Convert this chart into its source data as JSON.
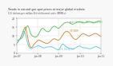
{
  "title": "Trends in natural gas spot prices at major global markets",
  "subtitle": "U.S. dollars per million British thermal units (MMBtu)",
  "background_color": "#f8f8f8",
  "plot_bg": "#ffffff",
  "japan_color": "#5cb85c",
  "uk_color": "#c8822a",
  "us_color": "#5bc0de",
  "japan_label": "Japan (average LNG import price)",
  "uk_label": "UK (NBP)",
  "us_label": "U.S. Henry Hub",
  "ylim": [
    0,
    20
  ],
  "yticks": [
    0,
    5,
    10,
    15,
    20
  ],
  "xtick_labels": [
    "Jan-07",
    "Jan-08",
    "Jan-09",
    "Jan-10",
    "Jan-11"
  ],
  "japan_data": [
    7.2,
    7.3,
    7.3,
    7.4,
    7.5,
    7.5,
    7.6,
    7.7,
    7.8,
    7.9,
    8.0,
    8.1,
    8.2,
    8.3,
    8.5,
    8.7,
    9.0,
    9.3,
    9.7,
    10.2,
    10.8,
    11.4,
    12.0,
    12.6,
    13.2,
    13.8,
    14.4,
    14.8,
    15.2,
    15.5,
    15.7,
    15.8,
    15.6,
    15.3,
    14.8,
    14.2,
    13.5,
    12.8,
    12.1,
    11.5,
    11.0,
    10.6,
    10.3,
    10.1,
    9.9,
    9.8,
    9.7,
    9.6,
    9.5,
    9.4,
    9.3,
    9.3,
    9.2,
    9.2,
    9.2,
    9.3,
    9.4,
    9.6,
    9.8,
    10.0,
    10.3,
    10.6,
    11.0,
    11.4,
    11.8,
    12.2,
    12.6,
    13.0,
    13.4,
    13.7,
    13.9,
    14.1,
    14.2,
    14.3,
    14.3,
    14.2,
    14.1,
    13.9,
    13.7,
    13.5,
    13.3,
    13.1,
    12.9,
    12.7,
    12.6,
    12.5,
    12.4,
    12.3,
    12.3,
    12.3,
    12.4,
    12.5,
    12.6,
    12.8,
    13.0,
    13.2,
    13.5,
    13.8,
    14.1,
    14.4,
    14.7,
    14.9,
    15.1,
    15.3,
    15.4,
    15.5,
    15.5,
    15.5,
    15.4,
    15.3,
    15.2,
    15.1,
    14.9,
    14.8,
    14.6,
    14.5,
    14.4,
    14.3,
    14.3,
    14.4,
    14.5,
    14.7,
    14.9,
    15.1,
    15.3,
    15.5,
    15.7,
    15.9,
    16.1,
    16.3,
    16.5,
    16.7,
    16.9,
    17.1,
    17.3,
    17.4,
    17.5,
    17.6,
    17.6,
    17.7,
    17.7,
    17.7,
    17.8,
    17.8,
    17.8,
    17.8,
    17.8,
    17.7,
    17.6,
    17.5,
    17.4,
    17.3,
    17.2,
    17.1,
    17.0,
    16.9,
    16.8,
    16.7,
    16.7,
    16.7,
    16.8,
    16.9,
    17.0,
    17.1,
    17.2,
    17.3,
    17.4,
    17.5,
    17.6,
    17.7,
    17.8,
    17.9,
    18.0,
    18.1,
    18.1,
    18.2,
    18.2,
    18.2,
    18.2,
    18.1,
    18.1,
    18.0,
    17.9,
    17.9,
    17.8,
    17.7,
    17.7,
    17.6,
    17.5,
    17.5,
    17.4,
    17.4,
    17.4,
    17.5,
    17.6,
    17.7,
    17.8,
    17.9,
    18.0,
    18.1,
    18.1,
    18.2,
    18.2,
    18.2,
    18.2,
    18.2,
    18.2,
    18.1,
    18.1,
    18.0,
    17.9,
    17.9,
    17.8,
    17.7,
    17.7,
    17.6,
    17.5,
    17.5,
    17.4,
    17.4,
    17.5,
    17.6,
    17.7,
    17.8,
    17.9,
    18.0,
    18.1,
    18.2,
    18.3,
    18.4,
    18.5,
    18.5,
    18.5,
    18.5,
    18.4,
    18.4,
    18.3,
    18.3,
    18.2,
    18.2
  ],
  "uk_data": [
    5.5,
    5.7,
    5.9,
    6.2,
    6.5,
    6.8,
    7.1,
    7.4,
    7.7,
    8.1,
    8.5,
    8.9,
    9.3,
    9.7,
    10.2,
    10.7,
    11.3,
    11.9,
    12.5,
    13.1,
    13.6,
    14.0,
    14.4,
    14.7,
    15.0,
    14.8,
    14.2,
    13.4,
    12.5,
    11.5,
    10.4,
    9.3,
    8.2,
    7.2,
    6.3,
    5.5,
    4.8,
    4.2,
    3.8,
    3.5,
    3.3,
    3.2,
    3.2,
    3.3,
    3.5,
    3.7,
    4.0,
    4.3,
    4.6,
    4.9,
    5.2,
    5.5,
    5.7,
    5.9,
    6.1,
    6.3,
    6.5,
    6.7,
    6.9,
    7.1,
    7.2,
    7.3,
    7.4,
    7.4,
    7.4,
    7.3,
    7.2,
    7.1,
    7.0,
    6.9,
    6.8,
    6.7,
    6.6,
    6.5,
    6.4,
    6.3,
    6.2,
    6.1,
    6.0,
    5.9,
    5.8,
    5.7,
    5.6,
    5.6,
    5.5,
    5.5,
    5.5,
    5.5,
    5.6,
    5.7,
    5.8,
    5.9,
    6.0,
    6.2,
    6.4,
    6.6,
    6.8,
    7.0,
    7.2,
    7.4,
    7.6,
    7.8,
    7.9,
    8.0,
    8.1,
    8.2,
    8.2,
    8.2,
    8.2,
    8.1,
    8.0,
    7.9,
    7.8,
    7.7,
    7.6,
    7.5,
    7.4,
    7.4,
    7.4,
    7.5,
    7.6,
    7.8,
    8.0,
    8.3,
    8.6,
    8.9,
    9.2,
    9.5,
    9.8,
    10.1,
    10.4,
    10.7,
    11.0,
    11.3,
    11.6,
    11.8,
    12.0,
    12.2,
    12.3,
    12.4,
    12.5,
    12.5,
    12.5,
    12.5,
    12.4,
    12.3,
    12.2,
    12.0,
    11.8,
    11.6,
    11.4,
    11.1,
    10.8,
    10.5,
    10.2,
    9.9,
    9.6,
    9.3,
    9.0,
    8.8,
    8.6,
    8.4,
    8.2,
    8.1,
    8.0,
    7.9,
    7.8,
    7.8,
    7.9,
    8.0,
    8.1,
    8.3,
    8.5,
    8.7,
    8.9,
    9.1,
    9.3,
    9.5,
    9.7,
    9.9,
    10.1,
    10.3,
    10.5,
    10.7,
    10.8,
    10.9,
    11.0,
    11.1,
    11.1,
    11.1,
    11.1,
    11.0,
    10.9,
    10.8,
    10.7,
    10.6,
    10.5,
    10.4,
    10.3,
    10.2,
    10.1,
    10.0,
    9.9,
    9.8,
    9.8,
    9.8,
    9.9,
    10.0,
    10.1,
    10.2,
    10.3,
    10.4,
    10.5,
    10.6,
    10.7,
    10.8,
    10.9,
    11.0,
    11.1,
    11.2,
    11.2,
    11.3,
    11.3,
    11.3,
    11.3,
    11.2,
    11.1,
    11.0,
    10.9,
    10.8,
    10.6,
    10.5,
    10.3,
    10.2,
    10.0,
    9.9,
    9.7,
    9.6,
    9.5,
    9.4
  ],
  "us_data": [
    5.5,
    5.7,
    6.0,
    6.3,
    6.7,
    7.0,
    7.3,
    7.6,
    7.8,
    8.0,
    8.3,
    8.6,
    9.0,
    9.4,
    9.8,
    10.3,
    10.8,
    11.3,
    11.8,
    12.2,
    12.6,
    12.7,
    12.5,
    12.0,
    11.4,
    10.7,
    9.8,
    8.9,
    8.0,
    7.1,
    6.3,
    5.6,
    4.9,
    4.3,
    3.8,
    3.4,
    3.1,
    2.9,
    2.7,
    2.6,
    2.5,
    2.5,
    2.5,
    2.6,
    2.7,
    2.8,
    2.9,
    3.0,
    3.1,
    3.2,
    3.3,
    3.4,
    3.5,
    3.5,
    3.6,
    3.7,
    3.8,
    3.9,
    4.0,
    4.1,
    4.2,
    4.2,
    4.2,
    4.1,
    4.0,
    3.9,
    3.8,
    3.7,
    3.6,
    3.5,
    3.4,
    3.3,
    3.2,
    3.1,
    3.0,
    3.0,
    2.9,
    2.9,
    2.9,
    3.0,
    3.0,
    3.1,
    3.1,
    3.2,
    3.3,
    3.4,
    3.5,
    3.5,
    3.5,
    3.5,
    3.5,
    3.5,
    3.5,
    3.5,
    3.5,
    3.5,
    3.5,
    3.5,
    3.5,
    3.4,
    3.4,
    3.3,
    3.2,
    3.1,
    3.0,
    2.9,
    2.8,
    2.7,
    2.6,
    2.5,
    2.4,
    2.3,
    2.2,
    2.1,
    2.0,
    1.9,
    1.8,
    1.8,
    1.9,
    2.0,
    2.2,
    2.5,
    2.8,
    3.2,
    3.6,
    4.0,
    4.3,
    4.6,
    4.8,
    5.0,
    5.1,
    5.1,
    5.0,
    4.9,
    4.7,
    4.5,
    4.3,
    4.1,
    3.9,
    3.7,
    3.6,
    3.4,
    3.3,
    3.2,
    3.1,
    3.0,
    2.9,
    2.8,
    2.7,
    2.7,
    2.6,
    2.6,
    2.5,
    2.5,
    2.5,
    2.4,
    2.4,
    2.4,
    2.4,
    2.4,
    2.4,
    2.5,
    2.5,
    2.6,
    2.7,
    2.8,
    2.9,
    3.0,
    3.1,
    3.2,
    3.3,
    3.4,
    3.6,
    3.7,
    3.8,
    3.9,
    4.0,
    4.0,
    4.0,
    3.9,
    3.8,
    3.7,
    3.6,
    3.5,
    3.4,
    3.3,
    3.2,
    3.1,
    3.0,
    3.0,
    3.0,
    3.0,
    3.0,
    3.0,
    2.9,
    2.9,
    2.8,
    2.8,
    2.7,
    2.7,
    2.6,
    2.6,
    2.5,
    2.5,
    2.4,
    2.4,
    2.4,
    2.4,
    2.4,
    2.5,
    2.5,
    2.6,
    2.7,
    2.8,
    2.9,
    3.0,
    3.1,
    3.2,
    3.3,
    3.4,
    3.5,
    3.6,
    3.7,
    3.7,
    3.7,
    3.7,
    3.6,
    3.5,
    3.4,
    3.3,
    3.2,
    3.1,
    3.0,
    2.9,
    2.8,
    2.7,
    2.6,
    2.5,
    2.4,
    2.3
  ]
}
